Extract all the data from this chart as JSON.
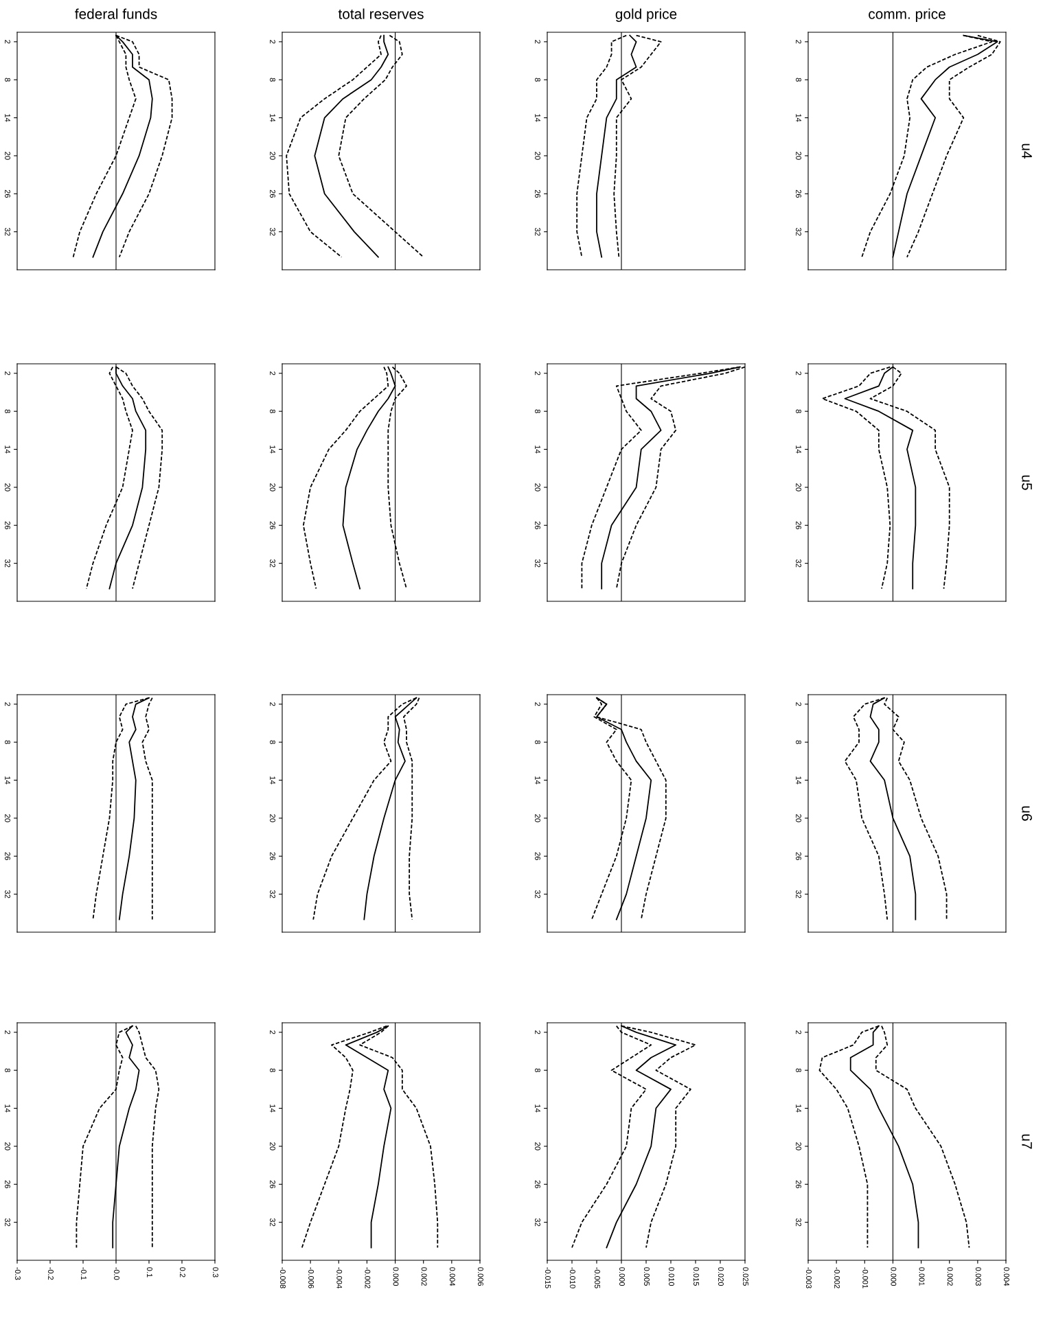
{
  "chart_data": [
    {
      "type": "line",
      "orientation": "horizontal",
      "title": "federal funds",
      "tick_labels": "y",
      "x": [
        1,
        2,
        4,
        6,
        8,
        11,
        14,
        20,
        26,
        32,
        36
      ],
      "ylim": [
        38,
        0.5
      ],
      "yticks": [
        2,
        8,
        14,
        20,
        26,
        32
      ],
      "xlim": [
        -0.3,
        0.3
      ],
      "ref_lines": [
        {
          "axis": "x",
          "value": 0
        }
      ],
      "series": [
        {
          "color": "#000000",
          "line_style": "solid",
          "values": [
            0.0,
            0.02,
            0.05,
            0.05,
            0.1,
            0.11,
            0.105,
            0.07,
            0.02,
            -0.04,
            -0.07
          ]
        },
        {
          "color": "#000000",
          "line_style": "dashed",
          "values": [
            0.0,
            0.05,
            0.07,
            0.07,
            0.16,
            0.17,
            0.17,
            0.14,
            0.1,
            0.04,
            0.01
          ]
        },
        {
          "color": "#000000",
          "line_style": "dashed",
          "values": [
            0.0,
            0.01,
            0.03,
            0.03,
            0.04,
            0.06,
            0.04,
            0.0,
            -0.06,
            -0.11,
            -0.13
          ]
        }
      ]
    },
    {
      "type": "line",
      "orientation": "horizontal",
      "title": "total reserves",
      "tick_labels": "y",
      "x": [
        1,
        2,
        4,
        6,
        8,
        11,
        14,
        20,
        26,
        32,
        36
      ],
      "ylim": [
        38,
        0.5
      ],
      "yticks": [
        2,
        8,
        14,
        20,
        26,
        32
      ],
      "xlim": [
        -0.008,
        0.006
      ],
      "ref_lines": [
        {
          "axis": "x",
          "value": 0
        }
      ],
      "series": [
        {
          "color": "#000000",
          "line_style": "solid",
          "values": [
            -0.0008,
            -0.0008,
            -0.0005,
            -0.001,
            -0.0017,
            -0.0037,
            -0.005,
            -0.0057,
            -0.005,
            -0.0029,
            -0.0012
          ]
        },
        {
          "color": "#000000",
          "line_style": "dashed",
          "values": [
            -0.0004,
            0.0003,
            0.0005,
            -0.0002,
            -0.0007,
            -0.0022,
            -0.0035,
            -0.004,
            -0.003,
            0.0,
            0.002
          ]
        },
        {
          "color": "#000000",
          "line_style": "dashed",
          "values": [
            -0.001,
            -0.0012,
            -0.001,
            -0.002,
            -0.003,
            -0.005,
            -0.0067,
            -0.0077,
            -0.0075,
            -0.006,
            -0.0038
          ]
        }
      ]
    },
    {
      "type": "line",
      "orientation": "horizontal",
      "title": "gold price",
      "tick_labels": "y",
      "x": [
        1,
        2,
        4,
        6,
        8,
        11,
        14,
        20,
        26,
        32,
        36
      ],
      "ylim": [
        38,
        0.5
      ],
      "yticks": [
        2,
        8,
        14,
        20,
        26,
        32
      ],
      "xlim": [
        -0.015,
        0.025
      ],
      "ref_lines": [
        {
          "axis": "x",
          "value": 0
        }
      ],
      "series": [
        {
          "color": "#000000",
          "line_style": "solid",
          "values": [
            0.0017,
            0.003,
            0.002,
            0.003,
            -0.001,
            -0.001,
            -0.003,
            -0.004,
            -0.005,
            -0.005,
            -0.004
          ]
        },
        {
          "color": "#000000",
          "line_style": "dashed",
          "values": [
            0.003,
            0.008,
            0.006,
            0.004,
            0.0,
            0.002,
            -0.001,
            -0.001,
            -0.0015,
            -0.001,
            -0.0005
          ]
        },
        {
          "color": "#000000",
          "line_style": "dashed",
          "values": [
            0.001,
            -0.002,
            -0.002,
            -0.003,
            -0.005,
            -0.005,
            -0.007,
            -0.008,
            -0.009,
            -0.009,
            -0.008
          ]
        }
      ]
    },
    {
      "type": "line",
      "orientation": "horizontal",
      "title": "comm. price",
      "annotations": [
        "u4"
      ],
      "tick_labels": "y",
      "x": [
        1,
        2,
        4,
        6,
        8,
        11,
        14,
        20,
        26,
        32,
        36
      ],
      "ylim": [
        38,
        0.5
      ],
      "yticks": [
        2,
        8,
        14,
        20,
        26,
        32
      ],
      "xlim": [
        -0.003,
        0.004
      ],
      "ref_lines": [
        {
          "axis": "x",
          "value": 0
        }
      ],
      "series": [
        {
          "color": "#000000",
          "line_style": "solid",
          "values": [
            0.0025,
            0.0037,
            0.003,
            0.002,
            0.0015,
            0.001,
            0.0015,
            0.001,
            0.0005,
            0.0002,
            0.0
          ]
        },
        {
          "color": "#000000",
          "line_style": "dashed",
          "values": [
            0.003,
            0.0038,
            0.0035,
            0.0027,
            0.002,
            0.002,
            0.0025,
            0.0019,
            0.0014,
            0.0009,
            0.0005
          ]
        },
        {
          "color": "#000000",
          "line_style": "dashed",
          "values": [
            0.0025,
            0.0035,
            0.0022,
            0.0012,
            0.0007,
            0.0005,
            0.0006,
            0.0004,
            -0.0001,
            -0.0008,
            -0.0011
          ]
        }
      ]
    },
    {
      "type": "line",
      "orientation": "horizontal",
      "tick_labels": "y",
      "x": [
        1,
        2,
        4,
        6,
        8,
        11,
        14,
        20,
        26,
        32,
        36
      ],
      "ylim": [
        38,
        0.5
      ],
      "yticks": [
        2,
        8,
        14,
        20,
        26,
        32
      ],
      "xlim": [
        -0.3,
        0.3
      ],
      "ref_lines": [
        {
          "axis": "x",
          "value": 0
        }
      ],
      "series": [
        {
          "color": "#000000",
          "line_style": "solid",
          "values": [
            0.0,
            0.0,
            0.02,
            0.05,
            0.06,
            0.09,
            0.09,
            0.08,
            0.05,
            0.0,
            -0.02
          ]
        },
        {
          "color": "#000000",
          "line_style": "dashed",
          "values": [
            0.0,
            0.03,
            0.05,
            0.08,
            0.1,
            0.14,
            0.14,
            0.13,
            0.1,
            0.07,
            0.05
          ]
        },
        {
          "color": "#000000",
          "line_style": "dashed",
          "values": [
            -0.01,
            -0.02,
            0.0,
            0.02,
            0.03,
            0.05,
            0.04,
            0.02,
            -0.03,
            -0.07,
            -0.09
          ]
        }
      ]
    },
    {
      "type": "line",
      "orientation": "horizontal",
      "tick_labels": "y",
      "x": [
        1,
        2,
        4,
        6,
        8,
        11,
        14,
        20,
        26,
        32,
        36
      ],
      "ylim": [
        38,
        0.5
      ],
      "yticks": [
        2,
        8,
        14,
        20,
        26,
        32
      ],
      "xlim": [
        -0.008,
        0.006
      ],
      "ref_lines": [
        {
          "axis": "x",
          "value": 0
        }
      ],
      "series": [
        {
          "color": "#000000",
          "line_style": "solid",
          "values": [
            -0.0005,
            -0.0003,
            0.0,
            -0.0005,
            -0.0012,
            -0.002,
            -0.0027,
            -0.0035,
            -0.0037,
            -0.003,
            -0.0025
          ]
        },
        {
          "color": "#000000",
          "line_style": "dashed",
          "values": [
            -0.0002,
            0.0003,
            0.0008,
            0.0,
            -0.0003,
            -0.0005,
            -0.0005,
            -0.0005,
            -0.0003,
            0.0003,
            0.0008
          ]
        },
        {
          "color": "#000000",
          "line_style": "dashed",
          "values": [
            -0.0008,
            -0.0006,
            -0.0005,
            -0.0015,
            -0.0025,
            -0.0035,
            -0.0047,
            -0.006,
            -0.0065,
            -0.006,
            -0.0056
          ]
        }
      ]
    },
    {
      "type": "line",
      "orientation": "horizontal",
      "tick_labels": "y",
      "x": [
        1,
        2,
        4,
        6,
        8,
        11,
        14,
        20,
        26,
        32,
        36
      ],
      "ylim": [
        38,
        0.5
      ],
      "yticks": [
        2,
        8,
        14,
        20,
        26,
        32
      ],
      "xlim": [
        -0.015,
        0.025
      ],
      "ref_lines": [
        {
          "axis": "x",
          "value": 0
        }
      ],
      "series": [
        {
          "color": "#000000",
          "line_style": "solid",
          "values": [
            0.024,
            0.018,
            0.003,
            0.003,
            0.006,
            0.008,
            0.004,
            0.003,
            -0.002,
            -0.004,
            -0.004
          ]
        },
        {
          "color": "#000000",
          "line_style": "dashed",
          "values": [
            0.025,
            0.021,
            0.008,
            0.006,
            0.01,
            0.011,
            0.008,
            0.007,
            0.003,
            0.0,
            -0.001
          ]
        },
        {
          "color": "#000000",
          "line_style": "dashed",
          "values": [
            0.024,
            0.016,
            -0.001,
            0.0,
            0.001,
            0.004,
            0.0,
            -0.003,
            -0.006,
            -0.008,
            -0.008
          ]
        }
      ]
    },
    {
      "type": "line",
      "orientation": "horizontal",
      "annotations": [
        "u5"
      ],
      "tick_labels": "y",
      "x": [
        1,
        2,
        4,
        6,
        8,
        11,
        14,
        20,
        26,
        32,
        36
      ],
      "ylim": [
        38,
        0.5
      ],
      "yticks": [
        2,
        8,
        14,
        20,
        26,
        32
      ],
      "xlim": [
        -0.003,
        0.004
      ],
      "ref_lines": [
        {
          "axis": "x",
          "value": 0
        }
      ],
      "series": [
        {
          "color": "#000000",
          "line_style": "solid",
          "values": [
            0.0,
            -0.0003,
            -0.0005,
            -0.0017,
            -0.0005,
            0.0007,
            0.0005,
            0.0008,
            0.0008,
            0.0007,
            0.0007
          ]
        },
        {
          "color": "#000000",
          "line_style": "dashed",
          "values": [
            0.0,
            0.0003,
            0.0,
            -0.0008,
            0.0005,
            0.0015,
            0.0015,
            0.002,
            0.002,
            0.0019,
            0.0018
          ]
        },
        {
          "color": "#000000",
          "line_style": "dashed",
          "values": [
            -0.0001,
            -0.0008,
            -0.0012,
            -0.0025,
            -0.0013,
            -0.0005,
            -0.0005,
            -0.0002,
            -0.0001,
            -0.0002,
            -0.0004
          ]
        }
      ]
    },
    {
      "type": "line",
      "orientation": "horizontal",
      "tick_labels": "y",
      "x": [
        1,
        2,
        4,
        6,
        8,
        11,
        14,
        20,
        26,
        32,
        36
      ],
      "ylim": [
        38,
        0.5
      ],
      "yticks": [
        2,
        8,
        14,
        20,
        26,
        32
      ],
      "xlim": [
        -0.3,
        0.3
      ],
      "ref_lines": [
        {
          "axis": "x",
          "value": 0
        }
      ],
      "series": [
        {
          "color": "#000000",
          "line_style": "solid",
          "values": [
            0.1,
            0.06,
            0.05,
            0.06,
            0.04,
            0.05,
            0.06,
            0.055,
            0.04,
            0.02,
            0.01
          ]
        },
        {
          "color": "#000000",
          "line_style": "dashed",
          "values": [
            0.11,
            0.1,
            0.09,
            0.1,
            0.08,
            0.09,
            0.11,
            0.11,
            0.11,
            0.11,
            0.11
          ]
        },
        {
          "color": "#000000",
          "line_style": "dashed",
          "values": [
            0.1,
            0.03,
            0.01,
            0.02,
            0.0,
            -0.01,
            -0.01,
            -0.02,
            -0.04,
            -0.06,
            -0.07
          ]
        }
      ]
    },
    {
      "type": "line",
      "orientation": "horizontal",
      "tick_labels": "y",
      "x": [
        1,
        2,
        4,
        6,
        8,
        11,
        14,
        20,
        26,
        32,
        36
      ],
      "ylim": [
        38,
        0.5
      ],
      "yticks": [
        2,
        8,
        14,
        20,
        26,
        32
      ],
      "xlim": [
        -0.008,
        0.006
      ],
      "ref_lines": [
        {
          "axis": "x",
          "value": 0
        }
      ],
      "series": [
        {
          "color": "#000000",
          "line_style": "solid",
          "values": [
            0.0015,
            0.001,
            0.0,
            0.0003,
            0.0002,
            0.0007,
            0.0,
            -0.0008,
            -0.0015,
            -0.002,
            -0.0022
          ]
        },
        {
          "color": "#000000",
          "line_style": "dashed",
          "values": [
            0.0017,
            0.0015,
            0.0006,
            0.0008,
            0.0008,
            0.0012,
            0.0012,
            0.0012,
            0.001,
            0.001,
            0.0012
          ]
        },
        {
          "color": "#000000",
          "line_style": "dashed",
          "values": [
            0.0015,
            0.0005,
            -0.0005,
            -0.0005,
            -0.0008,
            -0.0003,
            -0.0015,
            -0.003,
            -0.0045,
            -0.0055,
            -0.0058
          ]
        }
      ]
    },
    {
      "type": "line",
      "orientation": "horizontal",
      "tick_labels": "y",
      "x": [
        1,
        2,
        4,
        6,
        8,
        11,
        14,
        20,
        26,
        32,
        36
      ],
      "ylim": [
        38,
        0.5
      ],
      "yticks": [
        2,
        8,
        14,
        20,
        26,
        32
      ],
      "xlim": [
        -0.015,
        0.025
      ],
      "ref_lines": [
        {
          "axis": "x",
          "value": 0
        }
      ],
      "series": [
        {
          "color": "#000000",
          "line_style": "solid",
          "values": [
            -0.005,
            -0.003,
            -0.005,
            0.0,
            0.001,
            0.003,
            0.006,
            0.005,
            0.003,
            0.001,
            -0.001
          ]
        },
        {
          "color": "#000000",
          "line_style": "dashed",
          "values": [
            -0.005,
            -0.003,
            -0.005,
            0.004,
            0.005,
            0.007,
            0.009,
            0.009,
            0.007,
            0.005,
            0.004
          ]
        },
        {
          "color": "#000000",
          "line_style": "dashed",
          "values": [
            -0.005,
            -0.004,
            -0.0055,
            -0.001,
            -0.003,
            -0.001,
            0.002,
            0.001,
            -0.001,
            -0.004,
            -0.006
          ]
        }
      ]
    },
    {
      "type": "line",
      "orientation": "horizontal",
      "annotations": [
        "u6"
      ],
      "tick_labels": "y",
      "x": [
        1,
        2,
        4,
        6,
        8,
        11,
        14,
        20,
        26,
        32,
        36
      ],
      "ylim": [
        38,
        0.5
      ],
      "yticks": [
        2,
        8,
        14,
        20,
        26,
        32
      ],
      "xlim": [
        -0.003,
        0.004
      ],
      "ref_lines": [
        {
          "axis": "x",
          "value": 0
        }
      ],
      "series": [
        {
          "color": "#000000",
          "line_style": "solid",
          "values": [
            -0.0003,
            -0.0007,
            -0.0008,
            -0.0005,
            -0.0005,
            -0.0008,
            -0.0003,
            0.0,
            0.0006,
            0.0008,
            0.0008
          ]
        },
        {
          "color": "#000000",
          "line_style": "dashed",
          "values": [
            -0.0002,
            -0.0003,
            0.0002,
            0.0,
            0.0004,
            0.0002,
            0.0006,
            0.001,
            0.0016,
            0.0019,
            0.0019
          ]
        },
        {
          "color": "#000000",
          "line_style": "dashed",
          "values": [
            -0.0003,
            -0.001,
            -0.0014,
            -0.0012,
            -0.0012,
            -0.0017,
            -0.0013,
            -0.0011,
            -0.0005,
            -0.0003,
            -0.0002
          ]
        }
      ]
    },
    {
      "type": "line",
      "orientation": "horizontal",
      "x": [
        1,
        2,
        4,
        6,
        8,
        11,
        14,
        20,
        26,
        32,
        36
      ],
      "ylim": [
        38,
        0.5
      ],
      "yticks": [
        2,
        8,
        14,
        20,
        26,
        32
      ],
      "xlim": [
        -0.3,
        0.3
      ],
      "xticks": [
        {
          "value": -0.3,
          "label": "-0.3"
        },
        {
          "value": -0.2,
          "label": "-0.2"
        },
        {
          "value": -0.1,
          "label": "-0.1"
        },
        {
          "value": 0,
          "label": "-0.0"
        },
        {
          "value": 0.1,
          "label": "0.1"
        },
        {
          "value": 0.2,
          "label": "0.2"
        },
        {
          "value": 0.3,
          "label": "0.3"
        }
      ],
      "ref_lines": [
        {
          "axis": "x",
          "value": 0
        }
      ],
      "series": [
        {
          "color": "#000000",
          "line_style": "solid",
          "values": [
            0.05,
            0.03,
            0.05,
            0.04,
            0.07,
            0.06,
            0.04,
            0.01,
            0.0,
            -0.01,
            -0.01
          ]
        },
        {
          "color": "#000000",
          "line_style": "dashed",
          "values": [
            0.06,
            0.07,
            0.08,
            0.09,
            0.12,
            0.13,
            0.12,
            0.11,
            0.11,
            0.11,
            0.11
          ]
        },
        {
          "color": "#000000",
          "line_style": "dashed",
          "values": [
            0.05,
            0.01,
            0.0,
            0.02,
            0.01,
            0.0,
            -0.05,
            -0.1,
            -0.11,
            -0.12,
            -0.12
          ]
        }
      ]
    },
    {
      "type": "line",
      "orientation": "horizontal",
      "x": [
        1,
        2,
        4,
        6,
        8,
        11,
        14,
        20,
        26,
        32,
        36
      ],
      "ylim": [
        38,
        0.5
      ],
      "yticks": [
        2,
        8,
        14,
        20,
        26,
        32
      ],
      "xlim": [
        -0.008,
        0.006
      ],
      "xticks": [
        {
          "value": -0.008,
          "label": "-0.008"
        },
        {
          "value": -0.006,
          "label": "-0.006"
        },
        {
          "value": -0.004,
          "label": "-0.004"
        },
        {
          "value": -0.002,
          "label": "-0.002"
        },
        {
          "value": 0,
          "label": "0.000"
        },
        {
          "value": 0.002,
          "label": "0.002"
        },
        {
          "value": 0.004,
          "label": "0.004"
        },
        {
          "value": 0.006,
          "label": "0.006"
        }
      ],
      "ref_lines": [
        {
          "axis": "x",
          "value": 0
        }
      ],
      "series": [
        {
          "color": "#000000",
          "line_style": "solid",
          "values": [
            -0.0005,
            -0.0013,
            -0.0035,
            -0.002,
            -0.0005,
            -0.0008,
            -0.0003,
            -0.0008,
            -0.0012,
            -0.0017,
            -0.0017
          ]
        },
        {
          "color": "#000000",
          "line_style": "dashed",
          "values": [
            -0.0005,
            -0.001,
            -0.0025,
            -0.0002,
            0.0005,
            0.0005,
            0.0015,
            0.0025,
            0.0028,
            0.003,
            0.003
          ]
        },
        {
          "color": "#000000",
          "line_style": "dashed",
          "values": [
            -0.0006,
            -0.0018,
            -0.0045,
            -0.0035,
            -0.003,
            -0.0032,
            -0.0035,
            -0.004,
            -0.005,
            -0.006,
            -0.0066
          ]
        }
      ]
    },
    {
      "type": "line",
      "orientation": "horizontal",
      "x": [
        1,
        2,
        4,
        6,
        8,
        11,
        14,
        20,
        26,
        32,
        36
      ],
      "ylim": [
        38,
        0.5
      ],
      "yticks": [
        2,
        8,
        14,
        20,
        26,
        32
      ],
      "xlim": [
        -0.015,
        0.025
      ],
      "xticks": [
        {
          "value": -0.015,
          "label": "-0.015"
        },
        {
          "value": -0.01,
          "label": "-0.010"
        },
        {
          "value": -0.005,
          "label": "-0.005"
        },
        {
          "value": 0,
          "label": "0.000"
        },
        {
          "value": 0.005,
          "label": "0.005"
        },
        {
          "value": 0.01,
          "label": "0.010"
        },
        {
          "value": 0.015,
          "label": "0.015"
        },
        {
          "value": 0.02,
          "label": "0.020"
        },
        {
          "value": 0.025,
          "label": "0.025"
        }
      ],
      "ref_lines": [
        {
          "axis": "x",
          "value": 0
        }
      ],
      "series": [
        {
          "color": "#000000",
          "line_style": "solid",
          "values": [
            0.0,
            0.003,
            0.011,
            0.006,
            0.003,
            0.01,
            0.007,
            0.006,
            0.003,
            -0.001,
            -0.003
          ]
        },
        {
          "color": "#000000",
          "line_style": "dashed",
          "values": [
            0.0,
            0.006,
            0.015,
            0.01,
            0.007,
            0.014,
            0.011,
            0.011,
            0.009,
            0.006,
            0.005
          ]
        },
        {
          "color": "#000000",
          "line_style": "dashed",
          "values": [
            -0.001,
            0.0,
            0.006,
            0.002,
            -0.002,
            0.005,
            0.002,
            0.001,
            -0.003,
            -0.008,
            -0.01
          ]
        }
      ]
    },
    {
      "type": "line",
      "orientation": "horizontal",
      "annotations": [
        "u7"
      ],
      "x": [
        1,
        2,
        4,
        6,
        8,
        11,
        14,
        20,
        26,
        32,
        36
      ],
      "ylim": [
        38,
        0.5
      ],
      "yticks": [
        2,
        8,
        14,
        20,
        26,
        32
      ],
      "xlim": [
        -0.003,
        0.004
      ],
      "xticks": [
        {
          "value": -0.003,
          "label": "-0.003"
        },
        {
          "value": -0.002,
          "label": "-0.002"
        },
        {
          "value": -0.001,
          "label": "-0.001"
        },
        {
          "value": 0,
          "label": "0.000"
        },
        {
          "value": 0.001,
          "label": "0.001"
        },
        {
          "value": 0.002,
          "label": "0.002"
        },
        {
          "value": 0.003,
          "label": "0.003"
        },
        {
          "value": 0.004,
          "label": "0.004"
        }
      ],
      "ref_lines": [
        {
          "axis": "x",
          "value": 0
        }
      ],
      "series": [
        {
          "color": "#000000",
          "line_style": "solid",
          "values": [
            -0.0005,
            -0.0007,
            -0.0007,
            -0.0015,
            -0.0015,
            -0.0008,
            -0.0005,
            0.0002,
            0.0007,
            0.0009,
            0.0009
          ]
        },
        {
          "color": "#000000",
          "line_style": "dashed",
          "values": [
            -0.0004,
            -0.0003,
            -0.0002,
            -0.0006,
            -0.0006,
            0.0005,
            0.0008,
            0.0017,
            0.0022,
            0.0026,
            0.0027
          ]
        },
        {
          "color": "#000000",
          "line_style": "dashed",
          "values": [
            -0.0005,
            -0.0011,
            -0.0014,
            -0.0025,
            -0.0026,
            -0.002,
            -0.0016,
            -0.0012,
            -0.0009,
            -0.0009,
            -0.0009
          ]
        }
      ]
    }
  ]
}
